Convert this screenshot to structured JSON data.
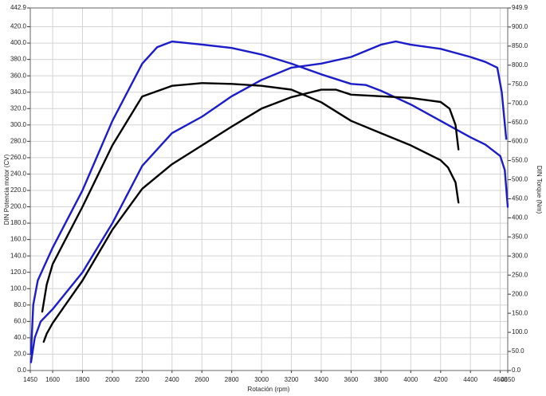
{
  "chart_data": {
    "type": "line",
    "x_label": "Rotación (rpm)",
    "y_label": "DIN Potencia motor (CV)",
    "y2_label": "DIN Torque (Nm)",
    "xlim": [
      1450,
      4650
    ],
    "xticks": [
      1450,
      1600,
      1800,
      2000,
      2200,
      2400,
      2600,
      2800,
      3000,
      3200,
      3400,
      3600,
      3800,
      4000,
      4200,
      4400,
      4600,
      4650
    ],
    "ylim": [
      0,
      442.9
    ],
    "yticks": [
      {
        "value": 0,
        "label": "0.0"
      },
      {
        "value": 20,
        "label": "20.0"
      },
      {
        "value": 40,
        "label": "40.0"
      },
      {
        "value": 60,
        "label": "60.0"
      },
      {
        "value": 80,
        "label": "80.0"
      },
      {
        "value": 100,
        "label": "100.0"
      },
      {
        "value": 120,
        "label": "120.0"
      },
      {
        "value": 140,
        "label": "140.0"
      },
      {
        "value": 160,
        "label": "160.0"
      },
      {
        "value": 180,
        "label": "180.0"
      },
      {
        "value": 200,
        "label": "200.0"
      },
      {
        "value": 220,
        "label": "220.0"
      },
      {
        "value": 240,
        "label": "240.0"
      },
      {
        "value": 260,
        "label": "260.0"
      },
      {
        "value": 280,
        "label": "280.0"
      },
      {
        "value": 300,
        "label": "300.0"
      },
      {
        "value": 320,
        "label": "320.0"
      },
      {
        "value": 340,
        "label": "340.0"
      },
      {
        "value": 360,
        "label": "360.0"
      },
      {
        "value": 380,
        "label": "380.0"
      },
      {
        "value": 400,
        "label": "400.0"
      },
      {
        "value": 420,
        "label": "420.0"
      },
      442.9
    ],
    "y2lim": [
      0,
      949.9
    ],
    "y2ticks": [
      {
        "value": 0,
        "label": "0.0"
      },
      {
        "value": 50,
        "label": "50.0"
      },
      {
        "value": 100,
        "label": "100.0"
      },
      {
        "value": 150,
        "label": "150.0"
      },
      {
        "value": 200,
        "label": "200.0"
      },
      {
        "value": 250,
        "label": "250.0"
      },
      {
        "value": 300,
        "label": "300.0"
      },
      {
        "value": 350,
        "label": "350.0"
      },
      {
        "value": 400,
        "label": "400.0"
      },
      {
        "value": 450,
        "label": "450.0"
      },
      {
        "value": 500,
        "label": "500.0"
      },
      {
        "value": 550,
        "label": "550.0"
      },
      {
        "value": 600,
        "label": "600.0"
      },
      {
        "value": 650,
        "label": "650.0"
      },
      {
        "value": 700,
        "label": "700.0"
      },
      {
        "value": 750,
        "label": "750.0"
      },
      {
        "value": 800,
        "label": "800.0"
      },
      {
        "value": 850,
        "label": "850.0"
      },
      {
        "value": 900,
        "label": "900.0"
      },
      949.9
    ],
    "series": [
      {
        "color": "#1c1cc8",
        "axis": "y2",
        "x": [
          1455,
          1470,
          1500,
          1550,
          1600,
          1800,
          2000,
          2200,
          2300,
          2400,
          2600,
          2800,
          3000,
          3200,
          3400,
          3600,
          3700,
          3800,
          4000,
          4200,
          4400,
          4500,
          4600,
          4630,
          4650
        ],
        "values": [
          43,
          172,
          236,
          279,
          322,
          472,
          654,
          804,
          847,
          862,
          854,
          845,
          828,
          804,
          776,
          751,
          748,
          733,
          697,
          654,
          611,
          592,
          562,
          525,
          429
        ]
      },
      {
        "color": "#1c1cc8",
        "axis": "y",
        "x": [
          1455,
          1480,
          1520,
          1600,
          1800,
          2000,
          2200,
          2400,
          2600,
          2800,
          3000,
          3200,
          3400,
          3600,
          3800,
          3900,
          4000,
          4200,
          4400,
          4500,
          4580,
          4610,
          4640
        ],
        "values": [
          10,
          40,
          60,
          75,
          120,
          180,
          250,
          290,
          310,
          335,
          355,
          370,
          375,
          383,
          398,
          402,
          398,
          393,
          383,
          377,
          370,
          340,
          283
        ]
      },
      {
        "color": "#000000",
        "axis": "y2",
        "x": [
          1530,
          1560,
          1600,
          1800,
          2000,
          2200,
          2400,
          2600,
          2800,
          3000,
          3200,
          3400,
          3600,
          3800,
          4000,
          4200,
          4250,
          4300,
          4320
        ],
        "values": [
          154,
          225,
          279,
          429,
          590,
          718,
          746,
          753,
          751,
          746,
          736,
          703,
          654,
          622,
          590,
          551,
          532,
          493,
          440
        ]
      },
      {
        "color": "#000000",
        "axis": "y",
        "x": [
          1540,
          1560,
          1600,
          1800,
          2000,
          2200,
          2400,
          2600,
          2800,
          3000,
          3200,
          3400,
          3500,
          3600,
          3800,
          4000,
          4200,
          4260,
          4300,
          4320
        ],
        "values": [
          35,
          45,
          58,
          110,
          172,
          222,
          252,
          275,
          298,
          320,
          334,
          343,
          343,
          337,
          335,
          333,
          328,
          320,
          300,
          270
        ]
      }
    ],
    "grid": true
  }
}
